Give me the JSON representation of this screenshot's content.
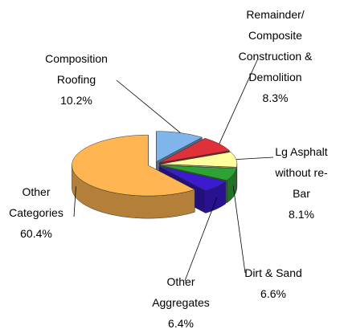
{
  "chart_data": {
    "type": "pie3d",
    "categories": [
      "Composition Roofing",
      "Remainder/ Composite Construction & Demolition",
      "Lg Asphalt without re-Bar",
      "Dirt & Sand",
      "Other Aggregates",
      "Other Categories"
    ],
    "values": [
      10.2,
      8.3,
      8.1,
      6.6,
      6.4,
      60.4
    ],
    "value_labels": [
      "10.2%",
      "8.3%",
      "8.1%",
      "6.6%",
      "6.4%",
      "60.4%"
    ],
    "colors": [
      "#7fb5ea",
      "#e0313b",
      "#ffff9e",
      "#2fa236",
      "#3b1ad0",
      "#ffb551"
    ]
  }
}
